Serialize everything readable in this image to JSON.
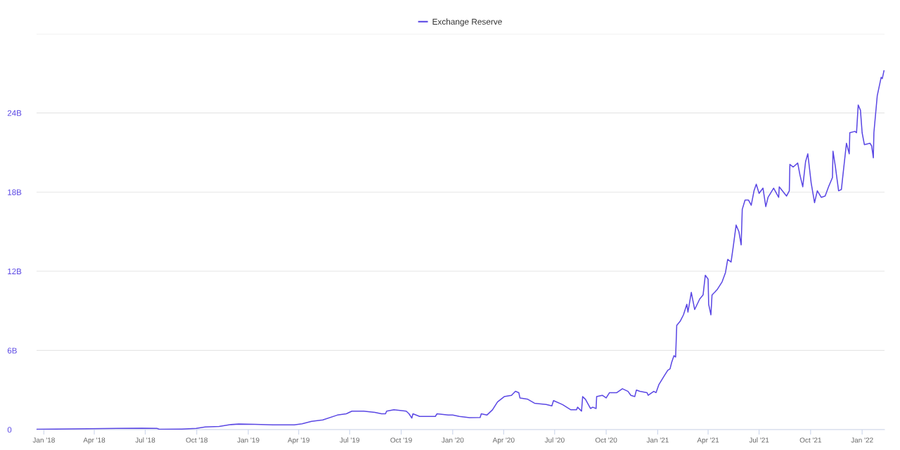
{
  "chart_data": {
    "type": "line",
    "x": [
      "2017-12-19",
      "2018-01-20",
      "2018-03-21",
      "2018-05-12",
      "2018-06-25",
      "2018-07-22",
      "2018-07-27",
      "2018-09-04",
      "2018-09-30",
      "2018-10-16",
      "2018-11-10",
      "2018-12-01",
      "2018-12-15",
      "2019-01-13",
      "2019-02-14",
      "2019-03-24",
      "2019-04-07",
      "2019-04-24",
      "2019-05-14",
      "2019-06-09",
      "2019-06-25",
      "2019-07-05",
      "2019-07-26",
      "2019-08-15",
      "2019-08-27",
      "2019-09-03",
      "2019-09-05",
      "2019-09-18",
      "2019-10-10",
      "2019-10-15",
      "2019-10-20",
      "2019-10-22",
      "2019-11-03",
      "2019-11-08",
      "2019-12-01",
      "2019-12-04",
      "2019-12-24",
      "2020-01-01",
      "2020-01-13",
      "2020-01-31",
      "2020-02-19",
      "2020-02-21",
      "2020-03-02",
      "2020-03-12",
      "2020-03-21",
      "2020-04-02",
      "2020-04-15",
      "2020-04-22",
      "2020-04-28",
      "2020-04-30",
      "2020-05-14",
      "2020-05-26",
      "2020-06-16",
      "2020-06-26",
      "2020-06-29",
      "2020-07-15",
      "2020-07-30",
      "2020-08-09",
      "2020-08-11",
      "2020-08-18",
      "2020-08-20",
      "2020-08-25",
      "2020-09-03",
      "2020-09-07",
      "2020-09-13",
      "2020-09-14",
      "2020-09-24",
      "2020-10-01",
      "2020-10-07",
      "2020-10-20",
      "2020-10-30",
      "2020-11-09",
      "2020-11-14",
      "2020-11-21",
      "2020-11-24",
      "2020-11-30",
      "2020-12-13",
      "2020-12-15",
      "2020-12-25",
      "2020-12-29",
      "2021-01-03",
      "2021-01-13",
      "2021-01-19",
      "2021-01-23",
      "2021-01-26",
      "2021-01-30",
      "2021-02-02",
      "2021-02-04",
      "2021-02-10",
      "2021-02-16",
      "2021-02-22",
      "2021-02-24",
      "2021-03-02",
      "2021-03-08",
      "2021-03-17",
      "2021-03-23",
      "2021-03-27",
      "2021-04-01",
      "2021-04-02",
      "2021-04-06",
      "2021-04-08",
      "2021-04-17",
      "2021-04-26",
      "2021-05-02",
      "2021-05-06",
      "2021-05-12",
      "2021-05-16",
      "2021-05-21",
      "2021-05-26",
      "2021-05-30",
      "2021-06-01",
      "2021-06-06",
      "2021-06-12",
      "2021-06-17",
      "2021-06-22",
      "2021-06-26",
      "2021-07-01",
      "2021-07-08",
      "2021-07-13",
      "2021-07-17",
      "2021-07-27",
      "2021-08-05",
      "2021-08-06",
      "2021-08-19",
      "2021-08-24",
      "2021-08-25",
      "2021-08-31",
      "2021-09-08",
      "2021-09-12",
      "2021-09-17",
      "2021-09-22",
      "2021-09-26",
      "2021-10-02",
      "2021-10-08",
      "2021-10-13",
      "2021-10-20",
      "2021-10-27",
      "2021-11-02",
      "2021-11-09",
      "2021-11-10",
      "2021-11-14",
      "2021-11-20",
      "2021-11-25",
      "2021-11-27",
      "2021-12-04",
      "2021-12-09",
      "2021-12-10",
      "2021-12-19",
      "2021-12-22",
      "2021-12-25",
      "2021-12-29",
      "2022-01-01",
      "2022-01-05",
      "2022-01-15",
      "2022-01-18",
      "2022-01-21",
      "2022-01-22",
      "2022-01-28",
      "2022-02-04",
      "2022-02-06",
      "2022-02-09"
    ],
    "series": [
      {
        "name": "Exchange Reserve",
        "color": "#5b48e4",
        "values": [
          0.02,
          0.04,
          0.07,
          0.09,
          0.11,
          0.09,
          0.02,
          0.04,
          0.09,
          0.2,
          0.24,
          0.38,
          0.42,
          0.4,
          0.36,
          0.36,
          0.44,
          0.62,
          0.73,
          1.1,
          1.2,
          1.4,
          1.4,
          1.3,
          1.2,
          1.2,
          1.4,
          1.5,
          1.4,
          1.2,
          0.87,
          1.2,
          1.0,
          1.0,
          1.0,
          1.2,
          1.1,
          1.1,
          1.0,
          0.9,
          0.92,
          1.2,
          1.1,
          1.5,
          2.1,
          2.5,
          2.6,
          2.9,
          2.8,
          2.4,
          2.3,
          2.0,
          1.9,
          1.8,
          2.2,
          1.9,
          1.5,
          1.5,
          1.7,
          1.4,
          2.5,
          2.3,
          1.6,
          1.7,
          1.6,
          2.5,
          2.6,
          2.4,
          2.8,
          2.8,
          3.1,
          2.9,
          2.6,
          2.5,
          3.0,
          2.9,
          2.8,
          2.6,
          2.9,
          2.8,
          3.4,
          4.1,
          4.5,
          4.6,
          5.1,
          5.6,
          5.5,
          7.9,
          8.2,
          8.7,
          9.5,
          8.9,
          10.4,
          9.1,
          9.9,
          10.2,
          11.7,
          11.4,
          9.5,
          8.7,
          10.2,
          10.6,
          11.2,
          11.9,
          12.9,
          12.7,
          13.9,
          15.5,
          15.0,
          14.0,
          16.7,
          17.4,
          17.4,
          17.0,
          18.1,
          18.6,
          17.9,
          18.3,
          16.9,
          17.6,
          18.3,
          17.6,
          18.4,
          17.7,
          18.1,
          20.1,
          19.9,
          20.2,
          19.3,
          18.4,
          20.3,
          20.9,
          18.7,
          17.2,
          18.1,
          17.6,
          17.7,
          18.4,
          19.1,
          21.1,
          20.0,
          18.1,
          18.2,
          19.0,
          21.7,
          20.9,
          22.5,
          22.6,
          22.5,
          24.6,
          24.2,
          22.5,
          21.6,
          21.7,
          21.5,
          20.6,
          22.5,
          25.3,
          26.7,
          26.6,
          27.2
        ]
      }
    ],
    "xlim": [
      "2017-12-19",
      "2022-02-10"
    ],
    "xticks": [
      {
        "value": "2018-01-01",
        "label": "Jan '18"
      },
      {
        "value": "2018-04-01",
        "label": "Apr '18"
      },
      {
        "value": "2018-07-01",
        "label": "Jul '18"
      },
      {
        "value": "2018-10-01",
        "label": "Oct '18"
      },
      {
        "value": "2019-01-01",
        "label": "Jan '19"
      },
      {
        "value": "2019-04-01",
        "label": "Apr '19"
      },
      {
        "value": "2019-07-01",
        "label": "Jul '19"
      },
      {
        "value": "2019-10-01",
        "label": "Oct '19"
      },
      {
        "value": "2020-01-01",
        "label": "Jan '20"
      },
      {
        "value": "2020-04-01",
        "label": "Apr '20"
      },
      {
        "value": "2020-07-01",
        "label": "Jul '20"
      },
      {
        "value": "2020-10-01",
        "label": "Oct '20"
      },
      {
        "value": "2021-01-01",
        "label": "Jan '21"
      },
      {
        "value": "2021-04-01",
        "label": "Apr '21"
      },
      {
        "value": "2021-07-01",
        "label": "Jul '21"
      },
      {
        "value": "2021-10-01",
        "label": "Oct '21"
      },
      {
        "value": "2022-01-01",
        "label": "Jan '22"
      }
    ],
    "ylim": [
      0,
      30
    ],
    "yticks": [
      0,
      {
        "value": 6,
        "label": "6B"
      },
      {
        "value": 12,
        "label": "12B"
      },
      {
        "value": 18,
        "label": "18B"
      },
      {
        "value": 24,
        "label": "24B"
      },
      {
        "value": 30,
        "label": null
      }
    ],
    "grid": "y",
    "legend": "top"
  }
}
